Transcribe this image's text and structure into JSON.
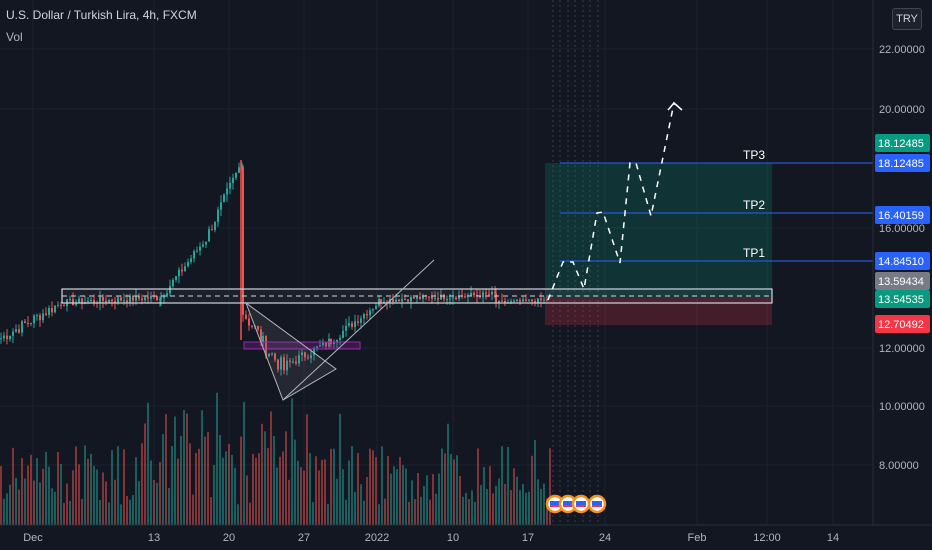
{
  "header": {
    "symbol_title": "U.S. Dollar / Turkish Lira, 4h, FXCM",
    "indicator": "Vol",
    "currency_button": "TRY"
  },
  "chart_data": {
    "type": "candlestick",
    "y_axis": {
      "ticks": [
        "22.00000",
        "20.00000",
        "16.00000",
        "12.00000",
        "10.00000",
        "8.00000"
      ],
      "range": [
        7.5,
        23.5
      ]
    },
    "x_axis": {
      "ticks": [
        "Dec",
        "13",
        "20",
        "27",
        "2022",
        "10",
        "17",
        "24",
        "Feb",
        "12:00",
        "14"
      ]
    },
    "targets": [
      {
        "label": "TP3",
        "price": "18.12485"
      },
      {
        "label": "TP2",
        "price": "16.40159"
      },
      {
        "label": "TP1",
        "price": "14.84510"
      }
    ],
    "price_labels": [
      {
        "value": "18.12485",
        "color": "#089981"
      },
      {
        "value": "18.12485",
        "color": "#2962ff"
      },
      {
        "value": "16.40159",
        "color": "#2962ff"
      },
      {
        "value": "14.84510",
        "color": "#2962ff"
      },
      {
        "value": "13.59434",
        "color": "#787b86"
      },
      {
        "value": "13.54535",
        "color": "#089981"
      },
      {
        "value": "12.70492",
        "color": "#f23645"
      }
    ],
    "trade": {
      "entry": 13.59434,
      "take_profit": 18.12485,
      "stop": 12.70492
    },
    "zone": {
      "top": 13.75,
      "bottom": 13.35
    },
    "projection": [
      [
        13.6,
        4
      ],
      [
        14.9,
        14
      ],
      [
        14.6,
        34
      ],
      [
        16.4,
        48
      ],
      [
        14.6,
        56
      ],
      [
        18.1,
        60
      ],
      [
        16.4,
        76
      ],
      [
        20.3,
        95
      ]
    ]
  }
}
